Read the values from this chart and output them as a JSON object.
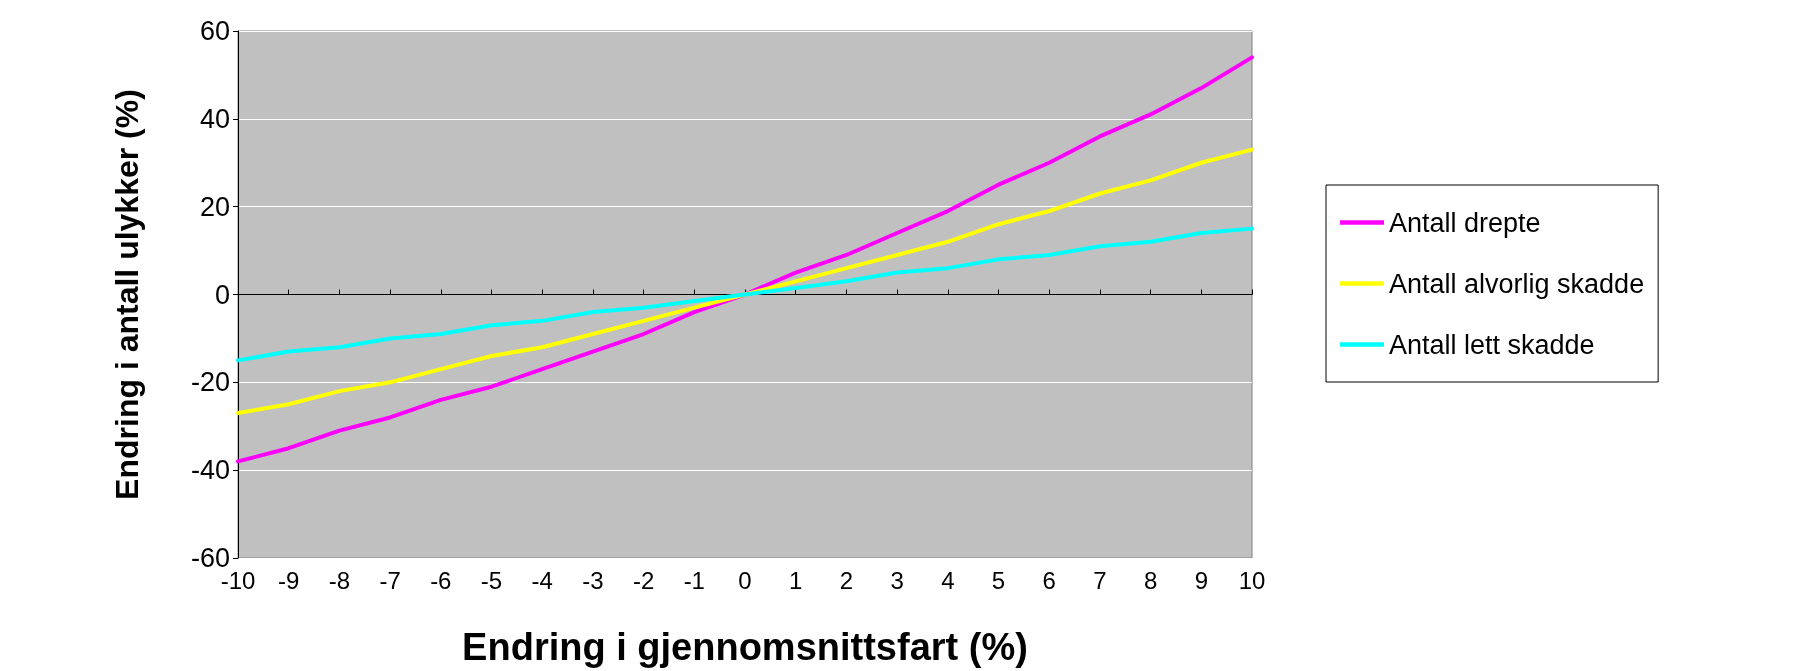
{
  "chart_data": {
    "type": "line",
    "xlabel": "Endring i gjennomsnittsfart (%)",
    "ylabel": "Endring i antall ulykker (%)",
    "x": [
      -10,
      -9,
      -8,
      -7,
      -6,
      -5,
      -4,
      -3,
      -2,
      -1,
      0,
      1,
      2,
      3,
      4,
      5,
      6,
      7,
      8,
      9,
      10
    ],
    "series": [
      {
        "name": "Antall drepte",
        "color": "#ff00ff",
        "values": [
          -38,
          -35,
          -31,
          -28,
          -24,
          -21,
          -17,
          -13,
          -9,
          -4,
          0,
          5,
          9,
          14,
          19,
          25,
          30,
          36,
          41,
          47,
          54
        ]
      },
      {
        "name": "Antall alvorlig skadde",
        "color": "#ffff00",
        "values": [
          -27,
          -25,
          -22,
          -20,
          -17,
          -14,
          -12,
          -9,
          -6,
          -3,
          0,
          3,
          6,
          9,
          12,
          16,
          19,
          23,
          26,
          30,
          33
        ]
      },
      {
        "name": "Antall lett skadde",
        "color": "#00ffff",
        "values": [
          -15,
          -13,
          -12,
          -10,
          -9,
          -7,
          -6,
          -4,
          -3,
          -1.5,
          0,
          1.5,
          3,
          5,
          6,
          8,
          9,
          11,
          12,
          14,
          15
        ]
      }
    ],
    "xlim": [
      -10,
      10
    ],
    "xticks": [
      -10,
      -9,
      -8,
      -7,
      -6,
      -5,
      -4,
      -3,
      -2,
      -1,
      0,
      1,
      2,
      3,
      4,
      5,
      6,
      7,
      8,
      9,
      10
    ],
    "ylim": [
      -60,
      60
    ],
    "yticks": [
      -60,
      -40,
      -20,
      0,
      20,
      40,
      60
    ],
    "grid": "y",
    "legend": "right",
    "marker": "none",
    "line_style": "solid"
  }
}
